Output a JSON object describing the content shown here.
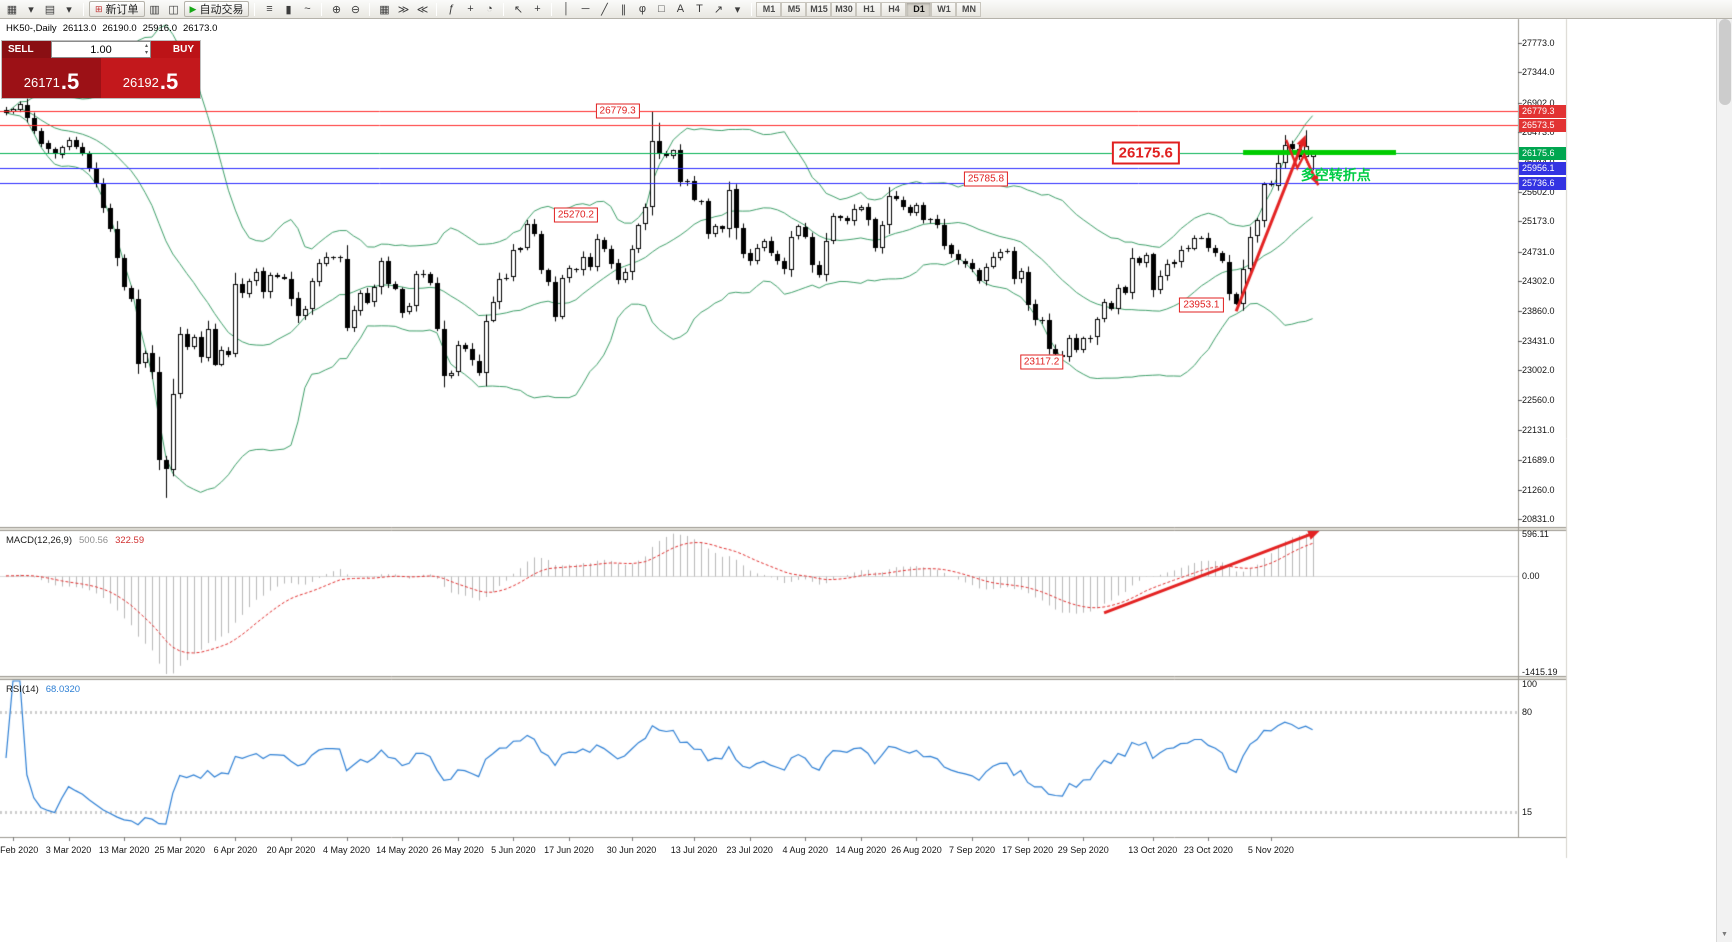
{
  "icons": {
    "volume_up": "▴",
    "volume_down": "▾",
    "scroll_up": "▲",
    "scroll_down": "▼"
  },
  "toolbar": {
    "groups": [
      {
        "items": [
          {
            "name": "new-chart-icon",
            "glyph": "▦"
          },
          {
            "name": "new-chart-dropdown-icon",
            "glyph": "▾"
          },
          {
            "name": "profiles-icon",
            "glyph": "▤"
          },
          {
            "name": "profiles-dropdown-icon",
            "glyph": "▾"
          }
        ]
      },
      {
        "items": [
          {
            "name": "new-order-button",
            "label": "新订单",
            "glyph": "⊞",
            "glyph_color": "#c03030"
          },
          {
            "name": "data-window-icon",
            "glyph": "▥"
          },
          {
            "name": "navigator-icon",
            "glyph": "◫"
          },
          {
            "name": "auto-trading-button",
            "label": "自动交易",
            "glyph": "▶",
            "glyph_color": "#18a818"
          }
        ]
      },
      {
        "items": [
          {
            "name": "bar-chart-icon",
            "glyph": "≡"
          },
          {
            "name": "candlestick-chart-icon",
            "glyph": "▮"
          },
          {
            "name": "line-chart-icon",
            "glyph": "~"
          }
        ]
      },
      {
        "items": [
          {
            "name": "zoom-in-icon",
            "glyph": "⊕"
          },
          {
            "name": "zoom-out-icon",
            "glyph": "⊖"
          }
        ]
      },
      {
        "items": [
          {
            "name": "tile-windows-icon",
            "glyph": "▦"
          },
          {
            "name": "auto-scroll-icon",
            "glyph": "≫"
          },
          {
            "name": "chart-shift-icon",
            "glyph": "≪"
          }
        ]
      },
      {
        "items": [
          {
            "name": "indicators-icon",
            "glyph": "ƒ"
          },
          {
            "name": "add-indicator-icon",
            "glyph": "+"
          },
          {
            "name": "periods-icon",
            "glyph": "◔"
          }
        ]
      },
      {
        "items": [
          {
            "name": "cursor-icon",
            "glyph": "↖"
          },
          {
            "name": "crosshair-icon",
            "glyph": "+"
          }
        ]
      },
      {
        "items": [
          {
            "name": "vertical-line-icon",
            "glyph": "│"
          },
          {
            "name": "horizontal-line-icon",
            "glyph": "─"
          },
          {
            "name": "trendline-icon",
            "glyph": "╱"
          },
          {
            "name": "channel-icon",
            "glyph": "∥"
          },
          {
            "name": "fibonacci-icon",
            "glyph": "φ"
          },
          {
            "name": "shapes-icon",
            "glyph": "□"
          },
          {
            "name": "text-icon",
            "glyph": "A"
          },
          {
            "name": "text-label-icon",
            "glyph": "T"
          },
          {
            "name": "arrow-tool-icon",
            "glyph": "↗"
          },
          {
            "name": "arrow-dropdown-icon",
            "glyph": "▾"
          }
        ]
      }
    ],
    "timeframes": {
      "items": [
        "M1",
        "M5",
        "M15",
        "M30",
        "H1",
        "H4",
        "D1",
        "W1",
        "MN"
      ],
      "active": "D1"
    }
  },
  "chart_header": {
    "symbol": "HK50-,Daily",
    "open": "26113.0",
    "high": "26190.0",
    "low": "25916.0",
    "close": "26173.0"
  },
  "one_click": {
    "sell_label": "SELL",
    "buy_label": "BUY",
    "volume": "1.00",
    "sell_price": "26171",
    "sell_price_frac": ".5",
    "buy_price": "26192",
    "buy_price_frac": ".5"
  },
  "macd_panel": {
    "title": "MACD(12,26,9)",
    "value_main": "500.56",
    "value_signal": "322.59",
    "scale_top": "596.11",
    "scale_zero": "0.00",
    "scale_bottom": "-1415.19"
  },
  "rsi_panel": {
    "title": "RSI(14)",
    "value": "68.0320",
    "scale_top": "100",
    "scale_upper": "80",
    "scale_lower": "15"
  },
  "price_axis_labels": [
    "27773.0",
    "27344.0",
    "26902.0",
    "26473.0",
    "26044.0",
    "25602.0",
    "25173.0",
    "24731.0",
    "24302.0",
    "23860.0",
    "23431.0",
    "23002.0",
    "22560.0",
    "22131.0",
    "21689.0",
    "21260.0",
    "20831.0"
  ],
  "axis_boxes": [
    {
      "text": "26779.3",
      "price": 26779.3,
      "bg": "#e23333"
    },
    {
      "text": "26573.5",
      "price": 26573.5,
      "bg": "#e23333"
    },
    {
      "text": "26175.6",
      "price": 26175.6,
      "bg": "#00a650"
    },
    {
      "text": "25956.1",
      "price": 25956.1,
      "bg": "#3333e2"
    },
    {
      "text": "25736.6",
      "price": 25736.6,
      "bg": "#3333e2"
    }
  ],
  "time_axis": [
    {
      "text": "20 Feb 2020",
      "idx": 1
    },
    {
      "text": "3 Mar 2020",
      "idx": 9
    },
    {
      "text": "13 Mar 2020",
      "idx": 17
    },
    {
      "text": "25 Mar 2020",
      "idx": 25
    },
    {
      "text": "6 Apr 2020",
      "idx": 33
    },
    {
      "text": "20 Apr 2020",
      "idx": 41
    },
    {
      "text": "4 May 2020",
      "idx": 49
    },
    {
      "text": "14 May 2020",
      "idx": 57
    },
    {
      "text": "26 May 2020",
      "idx": 65
    },
    {
      "text": "5 Jun 2020",
      "idx": 73
    },
    {
      "text": "17 Jun 2020",
      "idx": 81
    },
    {
      "text": "30 Jun 2020",
      "idx": 90
    },
    {
      "text": "13 Jul 2020",
      "idx": 99
    },
    {
      "text": "23 Jul 2020",
      "idx": 107
    },
    {
      "text": "4 Aug 2020",
      "idx": 115
    },
    {
      "text": "14 Aug 2020",
      "idx": 123
    },
    {
      "text": "26 Aug 2020",
      "idx": 131
    },
    {
      "text": "7 Sep 2020",
      "idx": 139
    },
    {
      "text": "17 Sep 2020",
      "idx": 147
    },
    {
      "text": "29 Sep 2020",
      "idx": 155
    },
    {
      "text": "13 Oct 2020",
      "idx": 165
    },
    {
      "text": "23 Oct 2020",
      "idx": 173
    },
    {
      "text": "5 Nov 2020",
      "idx": 182
    }
  ],
  "annotations": {
    "price_labels": [
      {
        "text": "26779.3",
        "price": 26779.3,
        "idx": 88,
        "large": false
      },
      {
        "text": "26175.6",
        "price": 26175.6,
        "idx": 164,
        "large": true
      },
      {
        "text": "25785.8",
        "price": 25785.8,
        "idx": 141,
        "large": false
      },
      {
        "text": "25270.2",
        "price": 25270.2,
        "idx": 82,
        "large": false
      },
      {
        "text": "23953.1",
        "price": 23953.1,
        "idx": 172,
        "large": false
      },
      {
        "text": "23117.2",
        "price": 23117.2,
        "idx": 149,
        "large": false
      }
    ],
    "turning_point": {
      "text": "多空转折点",
      "idx": 186.3,
      "price": 25870,
      "color": "#00cc44"
    }
  },
  "chart_data": {
    "type": "candlestick",
    "symbol": "HK50-",
    "period": "Daily",
    "candle_count": 189,
    "price_axis": {
      "max": 27773.0,
      "min": 20831.0
    },
    "bull_color": "#ffffff",
    "bear_color": "#000000",
    "outline_color": "#000000",
    "close_anchors": [
      [
        0,
        26750
      ],
      [
        2,
        26880
      ],
      [
        5,
        26310
      ],
      [
        7,
        26160
      ],
      [
        9,
        26360
      ],
      [
        11,
        26160
      ],
      [
        13,
        25710
      ],
      [
        15,
        25060
      ],
      [
        17,
        24210
      ],
      [
        18,
        24030
      ],
      [
        19,
        23100
      ],
      [
        20,
        23260
      ],
      [
        21,
        22990
      ],
      [
        22,
        21710
      ],
      [
        23,
        21560
      ],
      [
        24,
        22660
      ],
      [
        25,
        23520
      ],
      [
        26,
        23350
      ],
      [
        27,
        23480
      ],
      [
        28,
        23180
      ],
      [
        29,
        23600
      ],
      [
        30,
        23090
      ],
      [
        31,
        23280
      ],
      [
        32,
        23240
      ],
      [
        33,
        24250
      ],
      [
        34,
        24120
      ],
      [
        35,
        24300
      ],
      [
        36,
        24440
      ],
      [
        37,
        24150
      ],
      [
        38,
        24380
      ],
      [
        40,
        24330
      ],
      [
        42,
        23790
      ],
      [
        43,
        23890
      ],
      [
        44,
        24280
      ],
      [
        45,
        24570
      ],
      [
        46,
        24640
      ],
      [
        48,
        24640
      ],
      [
        49,
        23610
      ],
      [
        50,
        23870
      ],
      [
        51,
        24140
      ],
      [
        52,
        23980
      ],
      [
        53,
        24230
      ],
      [
        54,
        24600
      ],
      [
        55,
        24250
      ],
      [
        56,
        24180
      ],
      [
        57,
        23830
      ],
      [
        58,
        23930
      ],
      [
        59,
        24390
      ],
      [
        60,
        24400
      ],
      [
        61,
        24280
      ],
      [
        63,
        22930
      ],
      [
        64,
        22950
      ],
      [
        65,
        23380
      ],
      [
        66,
        23300
      ],
      [
        67,
        23130
      ],
      [
        68,
        22960
      ],
      [
        69,
        23730
      ],
      [
        70,
        24000
      ],
      [
        71,
        24330
      ],
      [
        72,
        24370
      ],
      [
        73,
        24770
      ],
      [
        74,
        24780
      ],
      [
        75,
        25130
      ],
      [
        76,
        24980
      ],
      [
        77,
        24480
      ],
      [
        78,
        24300
      ],
      [
        79,
        23780
      ],
      [
        80,
        24340
      ],
      [
        81,
        24480
      ],
      [
        82,
        24460
      ],
      [
        83,
        24640
      ],
      [
        84,
        24510
      ],
      [
        85,
        24910
      ],
      [
        86,
        24780
      ],
      [
        87,
        24550
      ],
      [
        88,
        24300
      ],
      [
        89,
        24430
      ],
      [
        91,
        25120
      ],
      [
        92,
        25370
      ],
      [
        93,
        26340
      ],
      [
        94,
        26160
      ],
      [
        95,
        26130
      ],
      [
        96,
        26210
      ],
      [
        97,
        25730
      ],
      [
        98,
        25770
      ],
      [
        99,
        25480
      ],
      [
        100,
        25480
      ],
      [
        101,
        24970
      ],
      [
        102,
        25090
      ],
      [
        103,
        25060
      ],
      [
        104,
        25640
      ],
      [
        105,
        25060
      ],
      [
        106,
        24700
      ],
      [
        107,
        24600
      ],
      [
        108,
        24770
      ],
      [
        109,
        24880
      ],
      [
        110,
        24710
      ],
      [
        111,
        24600
      ],
      [
        112,
        24460
      ],
      [
        113,
        24950
      ],
      [
        114,
        25100
      ],
      [
        115,
        24930
      ],
      [
        116,
        24530
      ],
      [
        117,
        24380
      ],
      [
        118,
        24890
      ],
      [
        119,
        25240
      ],
      [
        120,
        25230
      ],
      [
        121,
        25180
      ],
      [
        122,
        25350
      ],
      [
        123,
        25370
      ],
      [
        124,
        25180
      ],
      [
        125,
        24790
      ],
      [
        126,
        25110
      ],
      [
        127,
        25550
      ],
      [
        128,
        25490
      ],
      [
        130,
        25280
      ],
      [
        131,
        25420
      ],
      [
        132,
        25180
      ],
      [
        133,
        25190
      ],
      [
        134,
        25120
      ],
      [
        135,
        24820
      ],
      [
        136,
        24700
      ],
      [
        137,
        24620
      ],
      [
        139,
        24470
      ],
      [
        140,
        24310
      ],
      [
        141,
        24500
      ],
      [
        142,
        24640
      ],
      [
        143,
        24730
      ],
      [
        144,
        24730
      ],
      [
        145,
        24340
      ],
      [
        146,
        24460
      ],
      [
        147,
        23950
      ],
      [
        148,
        23720
      ],
      [
        149,
        23740
      ],
      [
        150,
        23310
      ],
      [
        151,
        23240
      ],
      [
        152,
        23200
      ],
      [
        153,
        23480
      ],
      [
        154,
        23280
      ],
      [
        155,
        23460
      ],
      [
        156,
        23460
      ],
      [
        157,
        23770
      ],
      [
        158,
        23980
      ],
      [
        159,
        23890
      ],
      [
        160,
        24190
      ],
      [
        161,
        24120
      ],
      [
        162,
        24650
      ],
      [
        163,
        24570
      ],
      [
        164,
        24670
      ],
      [
        165,
        24160
      ],
      [
        166,
        24390
      ],
      [
        167,
        24540
      ],
      [
        168,
        24570
      ],
      [
        169,
        24750
      ],
      [
        170,
        24790
      ],
      [
        171,
        24920
      ],
      [
        172,
        24920
      ],
      [
        173,
        24790
      ],
      [
        174,
        24710
      ],
      [
        175,
        24590
      ],
      [
        176,
        24110
      ],
      [
        177,
        23990
      ],
      [
        178,
        24460
      ],
      [
        179,
        24940
      ],
      [
        180,
        25190
      ],
      [
        181,
        25700
      ],
      [
        182,
        25710
      ],
      [
        183,
        26020
      ],
      [
        184,
        26300
      ],
      [
        185,
        26230
      ],
      [
        186,
        26100
      ],
      [
        187,
        26250
      ],
      [
        188,
        26173
      ]
    ],
    "special_highs": [
      [
        93,
        26779.3
      ],
      [
        94,
        26610
      ],
      [
        184,
        26430
      ],
      [
        187,
        26500
      ]
    ],
    "special_lows": [
      [
        23,
        21139
      ],
      [
        152,
        23117.2
      ],
      [
        177,
        23953.1
      ]
    ],
    "last_candle": {
      "o": 26113.0,
      "h": 26190.0,
      "l": 25916.0,
      "c": 26173.0
    },
    "indicators": {
      "bollinger": {
        "period": 20,
        "deviation": 2,
        "color": "#3d9e68"
      },
      "macd": {
        "fast": 12,
        "slow": 26,
        "signal": 9,
        "histogram_color": "#b8b8b8",
        "signal_color": "#e03030"
      },
      "rsi": {
        "period": 14,
        "color": "#2d7fd4",
        "levels": [
          80,
          15
        ]
      }
    },
    "overlays": {
      "hlines": [
        {
          "price": 26779.3,
          "color": "#ff2a2a"
        },
        {
          "price": 26573.5,
          "color": "#ff2a2a"
        },
        {
          "price": 26175.6,
          "color": "#00b050"
        },
        {
          "price": 25956.1,
          "color": "#2a2aff"
        },
        {
          "price": 25736.6,
          "color": "#2a2aff"
        }
      ],
      "green_segment": {
        "price": 26175.6,
        "idx_from": 178,
        "idx_to": 200,
        "color": "#00cc00",
        "width": 5
      },
      "trend_arrow": {
        "from": {
          "idx": 177,
          "price": 23860
        },
        "to": {
          "idx": 187,
          "price": 26430
        },
        "color": "#e32222",
        "width": 3
      },
      "pullback_polyline": {
        "points": [
          [
            184.2,
            26360
          ],
          [
            185.8,
            25950
          ],
          [
            186.8,
            26140
          ],
          [
            188.8,
            25700
          ]
        ],
        "color": "#e32222",
        "width": 2.4
      },
      "macd_arrow": {
        "from": {
          "idx": 158,
          "value": -430
        },
        "to": {
          "idx": 189,
          "value": 520
        },
        "color": "#e32222",
        "width": 3
      }
    }
  }
}
